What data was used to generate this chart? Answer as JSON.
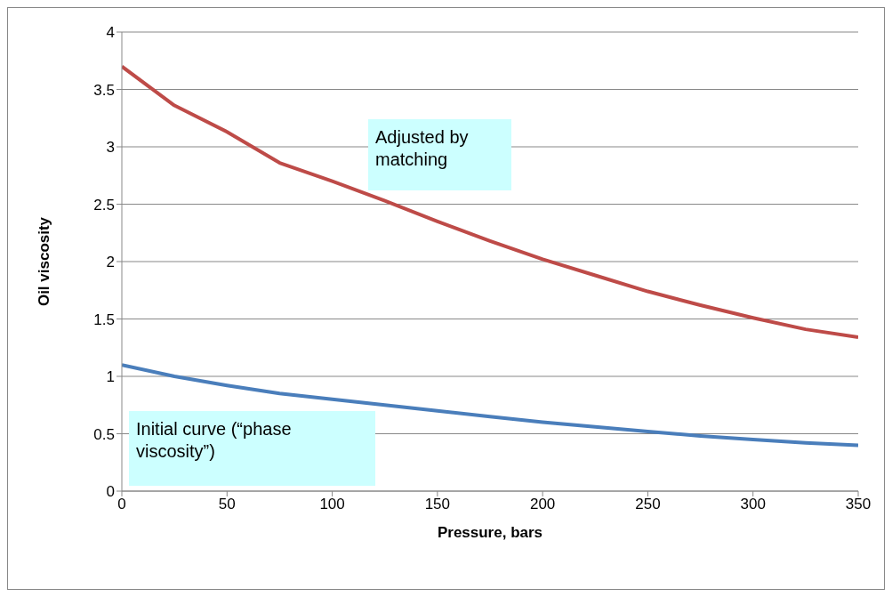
{
  "chart_data": {
    "type": "line",
    "xlabel": "Pressure, bars",
    "ylabel": "Oil viscosity",
    "x": [
      0,
      25,
      50,
      75,
      100,
      125,
      150,
      175,
      200,
      225,
      250,
      275,
      300,
      325,
      350
    ],
    "series": [
      {
        "name": "Initial curve (“phase viscosity”)",
        "color": "#4a7ebb",
        "values": [
          1.1,
          1.0,
          0.92,
          0.85,
          0.8,
          0.75,
          0.7,
          0.65,
          0.6,
          0.56,
          0.52,
          0.48,
          0.45,
          0.42,
          0.4
        ]
      },
      {
        "name": "Adjusted by matching",
        "color": "#be4b48",
        "values": [
          3.7,
          3.36,
          3.13,
          2.86,
          2.7,
          2.53,
          2.35,
          2.18,
          2.02,
          1.88,
          1.74,
          1.62,
          1.51,
          1.41,
          1.34
        ]
      }
    ],
    "xlim": [
      0,
      350
    ],
    "xticks": [
      0,
      50,
      100,
      150,
      200,
      250,
      300,
      350
    ],
    "ylim": [
      0,
      4
    ],
    "yticks": [
      0,
      0.5,
      1,
      1.5,
      2,
      2.5,
      3,
      3.5,
      4
    ],
    "grid": "y"
  }
}
